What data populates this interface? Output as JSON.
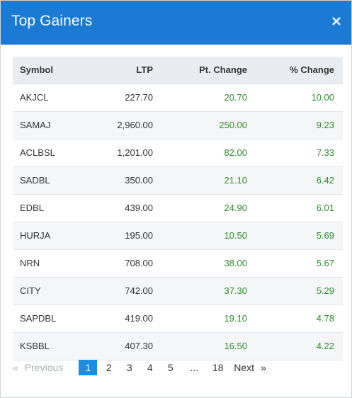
{
  "modal": {
    "title": "Top Gainers",
    "close_glyph": "×"
  },
  "table": {
    "headers": {
      "symbol": "Symbol",
      "ltp": "LTP",
      "pt_change": "Pt. Change",
      "pct_change": "% Change"
    },
    "rows": [
      {
        "symbol": "AKJCL",
        "ltp": "227.70",
        "pt_change": "20.70",
        "pct_change": "10.00"
      },
      {
        "symbol": "SAMAJ",
        "ltp": "2,960.00",
        "pt_change": "250.00",
        "pct_change": "9.23"
      },
      {
        "symbol": "ACLBSL",
        "ltp": "1,201.00",
        "pt_change": "82.00",
        "pct_change": "7.33"
      },
      {
        "symbol": "SADBL",
        "ltp": "350.00",
        "pt_change": "21.10",
        "pct_change": "6.42"
      },
      {
        "symbol": "EDBL",
        "ltp": "439.00",
        "pt_change": "24.90",
        "pct_change": "6.01"
      },
      {
        "symbol": "HURJA",
        "ltp": "195.00",
        "pt_change": "10.50",
        "pct_change": "5.69"
      },
      {
        "symbol": "NRN",
        "ltp": "708.00",
        "pt_change": "38.00",
        "pct_change": "5.67"
      },
      {
        "symbol": "CITY",
        "ltp": "742.00",
        "pt_change": "37.30",
        "pct_change": "5.29"
      },
      {
        "symbol": "SAPDBL",
        "ltp": "419.00",
        "pt_change": "19.10",
        "pct_change": "4.78"
      },
      {
        "symbol": "KSBBL",
        "ltp": "407.30",
        "pt_change": "16.50",
        "pct_change": "4.22"
      }
    ]
  },
  "pagination": {
    "prev_arrow": "«",
    "prev_label": "Previous",
    "pages": [
      "1",
      "2",
      "3",
      "4",
      "5"
    ],
    "active_page": "1",
    "ellipsis": "...",
    "last_page": "18",
    "next_label": "Next",
    "next_arrow": "»"
  },
  "colors": {
    "header_bg": "#1a7ad4",
    "positive": "#2e8b2e",
    "active_page": "#1a8de0"
  }
}
